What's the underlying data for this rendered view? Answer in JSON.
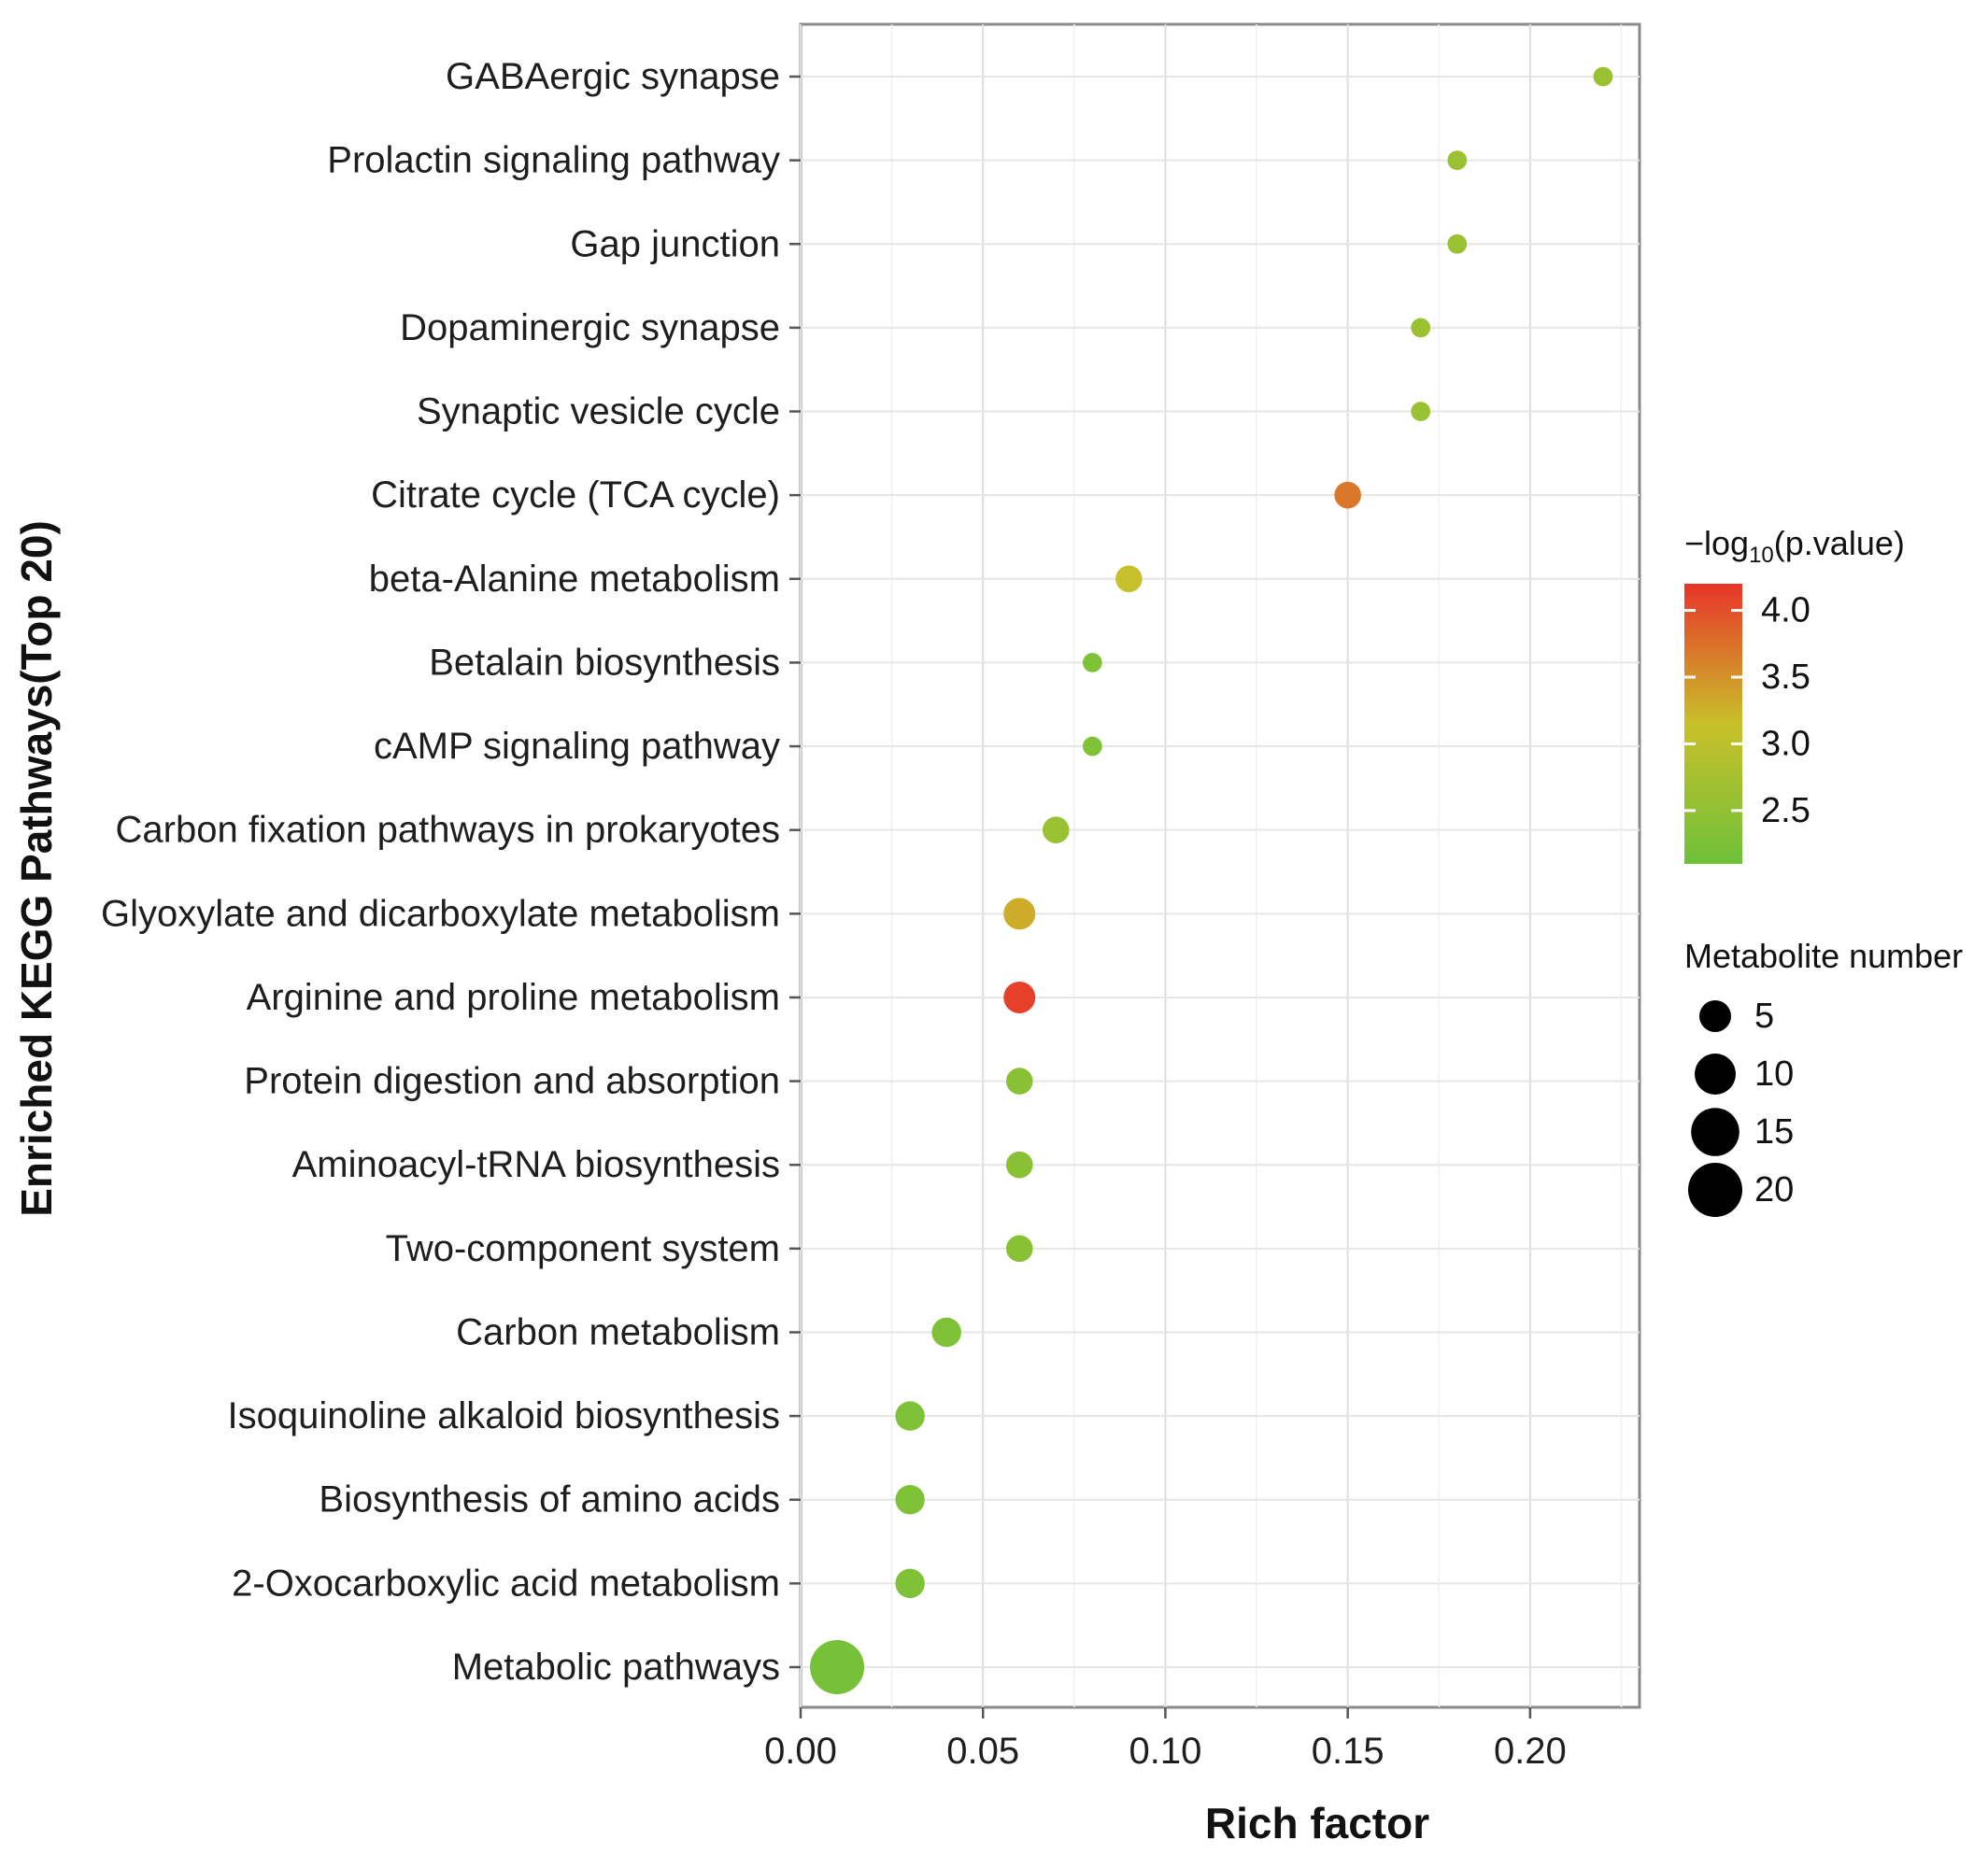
{
  "chart_data": {
    "type": "scatter",
    "title": "",
    "xlabel": "Rich factor",
    "ylabel": "Enriched KEGG Pathways(Top 20)",
    "xlim": [
      0.0,
      0.23
    ],
    "x_ticks": [
      "0.00",
      "0.05",
      "0.10",
      "0.15",
      "0.20"
    ],
    "x_tick_values": [
      0.0,
      0.05,
      0.1,
      0.15,
      0.2
    ],
    "grid": true,
    "categories": [
      "GABAergic synapse",
      "Prolactin signaling pathway",
      "Gap junction",
      "Dopaminergic synapse",
      "Synaptic vesicle cycle",
      "Citrate cycle (TCA cycle)",
      "beta-Alanine metabolism",
      "Betalain biosynthesis",
      "cAMP signaling pathway",
      "Carbon fixation pathways in prokaryotes",
      "Glyoxylate and dicarboxylate metabolism",
      "Arginine and proline metabolism",
      "Protein digestion and absorption",
      "Aminoacyl-tRNA biosynthesis",
      "Two-component system",
      "Carbon metabolism",
      "Isoquinoline alkaloid biosynthesis",
      "Biosynthesis of amino acids",
      "2-Oxocarboxylic acid metabolism",
      "Metabolic pathways"
    ],
    "points": [
      {
        "rich_factor": 0.22,
        "neg_log10_p": 2.6,
        "metabolite_number": 1
      },
      {
        "rich_factor": 0.18,
        "neg_log10_p": 2.6,
        "metabolite_number": 1
      },
      {
        "rich_factor": 0.18,
        "neg_log10_p": 2.6,
        "metabolite_number": 1
      },
      {
        "rich_factor": 0.17,
        "neg_log10_p": 2.6,
        "metabolite_number": 1
      },
      {
        "rich_factor": 0.17,
        "neg_log10_p": 2.6,
        "metabolite_number": 1
      },
      {
        "rich_factor": 0.15,
        "neg_log10_p": 3.7,
        "metabolite_number": 3
      },
      {
        "rich_factor": 0.09,
        "neg_log10_p": 3.1,
        "metabolite_number": 3
      },
      {
        "rich_factor": 0.08,
        "neg_log10_p": 2.3,
        "metabolite_number": 1
      },
      {
        "rich_factor": 0.08,
        "neg_log10_p": 2.3,
        "metabolite_number": 1
      },
      {
        "rich_factor": 0.07,
        "neg_log10_p": 2.6,
        "metabolite_number": 3
      },
      {
        "rich_factor": 0.06,
        "neg_log10_p": 3.3,
        "metabolite_number": 5
      },
      {
        "rich_factor": 0.06,
        "neg_log10_p": 4.1,
        "metabolite_number": 5
      },
      {
        "rich_factor": 0.06,
        "neg_log10_p": 2.4,
        "metabolite_number": 3
      },
      {
        "rich_factor": 0.06,
        "neg_log10_p": 2.4,
        "metabolite_number": 3
      },
      {
        "rich_factor": 0.06,
        "neg_log10_p": 2.4,
        "metabolite_number": 3
      },
      {
        "rich_factor": 0.04,
        "neg_log10_p": 2.3,
        "metabolite_number": 4
      },
      {
        "rich_factor": 0.03,
        "neg_log10_p": 2.3,
        "metabolite_number": 4
      },
      {
        "rich_factor": 0.03,
        "neg_log10_p": 2.3,
        "metabolite_number": 4
      },
      {
        "rich_factor": 0.03,
        "neg_log10_p": 2.3,
        "metabolite_number": 4
      },
      {
        "rich_factor": 0.01,
        "neg_log10_p": 2.2,
        "metabolite_number": 20
      }
    ],
    "color_legend": {
      "title_prefix": "−log",
      "title_sub": "10",
      "title_suffix": "(p.value)",
      "range": [
        2.1,
        4.2
      ],
      "ticks": [
        "4.0",
        "3.5",
        "3.0",
        "2.5"
      ],
      "tick_values": [
        4.0,
        3.5,
        3.0,
        2.5
      ],
      "colors": {
        "low": "#6ec13a",
        "mid": "#c9c02a",
        "high": "#e8342a"
      },
      "placement": "right"
    },
    "size_legend": {
      "title": "Metabolite number",
      "labels": [
        "5",
        "10",
        "15",
        "20"
      ],
      "values": [
        5,
        10,
        15,
        20
      ],
      "color": "#000000",
      "placement": "right"
    }
  }
}
